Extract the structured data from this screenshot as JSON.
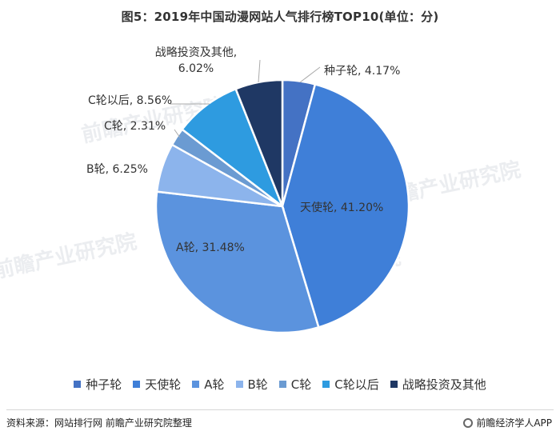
{
  "title": "图5：2019年中国动漫网站人气排行榜TOP10(单位：分)",
  "chart_data": {
    "type": "pie",
    "title": "图5：2019年中国动漫网站人气排行榜TOP10(单位：分)",
    "categories": [
      "种子轮",
      "天使轮",
      "A轮",
      "B轮",
      "C轮",
      "C轮以后",
      "战略投资及其他"
    ],
    "values": [
      4.17,
      41.2,
      31.48,
      6.25,
      2.31,
      8.56,
      6.02
    ],
    "labels": [
      "种子轮, 4.17%",
      "天使轮, 41.20%",
      "A轮, 31.48%",
      "B轮, 6.25%",
      "C轮, 2.31%",
      "C轮以后, 8.56%",
      "战略投资及其他, 6.02%"
    ],
    "colors": [
      "#4472C4",
      "#3F7FD8",
      "#5B93DE",
      "#8CB4EC",
      "#6B9BD2",
      "#2E9BE0",
      "#1F3864"
    ],
    "legend": "bottom"
  },
  "footer": {
    "source": "资料来源：网站排行网 前瞻产业研究院整理",
    "brand": "前瞻经济学人APP"
  },
  "watermark": "前瞻产业研究院"
}
